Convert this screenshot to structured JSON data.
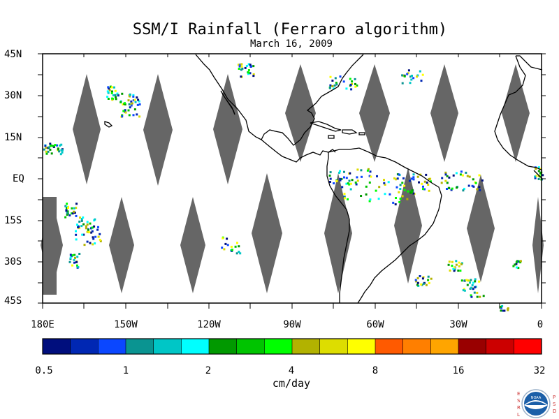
{
  "title": "SSM/I Rainfall (Ferraro algorithm)",
  "subtitle": "March 16, 2009",
  "lat_labels": [
    "45N",
    "30N",
    "15N",
    "EQ",
    "15S",
    "30S",
    "45S"
  ],
  "lon_labels": [
    "180E",
    "150W",
    "120W",
    "90W",
    "60W",
    "30W",
    "0"
  ],
  "colorbar": {
    "ticks": [
      "0.5",
      "1",
      "2",
      "4",
      "8",
      "16",
      "32"
    ],
    "unit": "cm/day",
    "colors": [
      "#000e7d",
      "#0027b3",
      "#0b47ff",
      "#0a9491",
      "#00c6c6",
      "#00ffff",
      "#019900",
      "#00c400",
      "#00ff00",
      "#b2b200",
      "#dddd00",
      "#ffff00",
      "#ff5a00",
      "#ff7f00",
      "#ffa500",
      "#990000",
      "#cc0000",
      "#ff0000"
    ]
  },
  "logo": {
    "left_letters": "ESRL",
    "right_letters": "PSD",
    "seal_text": "NOAA"
  },
  "colors": {
    "swath_gap": "#666666",
    "coastline": "#000000"
  }
}
